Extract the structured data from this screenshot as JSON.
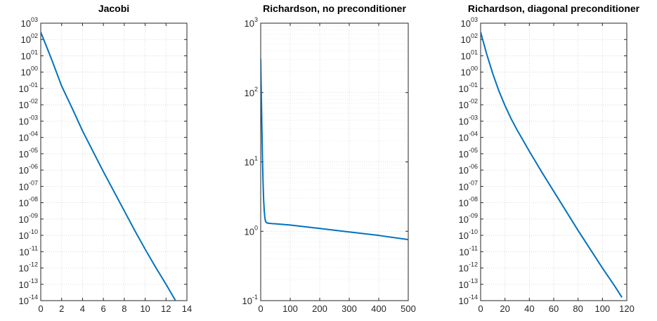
{
  "chart_data": [
    {
      "type": "line",
      "title": "Jacobi",
      "xlabel": "",
      "ylabel": "",
      "y_scale": "log",
      "xlim": [
        0,
        14
      ],
      "ylim_exp": [
        -14,
        3
      ],
      "x_ticks": [
        "0",
        "2",
        "4",
        "6",
        "8",
        "10",
        "12",
        "14"
      ],
      "x_tick_values": [
        0,
        2,
        4,
        6,
        8,
        10,
        12,
        14
      ],
      "y_tick_base": "10",
      "y_tick_exponents": [
        "-14",
        "-13",
        "-12",
        "-11",
        "-10",
        "-09",
        "-08",
        "-07",
        "-06",
        "-05",
        "-04",
        "-03",
        "-02",
        "-01",
        "00",
        "01",
        "02",
        "03"
      ],
      "grid": true,
      "minor_grid": true,
      "color": "#0072BD",
      "series": [
        {
          "x": [
            0,
            1,
            2,
            3,
            4,
            5,
            6,
            7,
            8,
            9,
            10,
            11,
            12,
            13,
            14
          ],
          "y_exp": [
            2.45,
            0.85,
            -0.85,
            -2.2,
            -3.6,
            -4.85,
            -6.1,
            -7.3,
            -8.5,
            -9.7,
            -10.85,
            -11.95,
            -13.0,
            -14.1,
            -15.2
          ]
        }
      ]
    },
    {
      "type": "line",
      "title": "Richardson, no preconditioner",
      "xlabel": "",
      "ylabel": "",
      "y_scale": "log",
      "xlim": [
        0,
        500
      ],
      "ylim_exp": [
        -1,
        3
      ],
      "x_ticks": [
        "0",
        "100",
        "200",
        "300",
        "400",
        "500"
      ],
      "x_tick_values": [
        0,
        100,
        200,
        300,
        400,
        500
      ],
      "y_tick_base": "10",
      "y_tick_exponents": [
        "-1",
        "0",
        "1",
        "2",
        "3"
      ],
      "grid": true,
      "minor_grid": true,
      "color": "#0072BD",
      "series": [
        {
          "x": [
            0,
            2,
            4,
            6,
            8,
            10,
            12,
            14,
            16,
            18,
            20,
            22,
            24,
            26,
            28,
            30,
            35,
            40,
            50,
            100,
            200,
            300,
            400,
            500
          ],
          "y_exp": [
            2.49,
            2.0,
            1.5,
            1.05,
            0.7,
            0.45,
            0.3,
            0.2,
            0.15,
            0.13,
            0.125,
            0.12,
            0.118,
            0.116,
            0.115,
            0.114,
            0.112,
            0.11,
            0.108,
            0.09,
            0.04,
            -0.01,
            -0.06,
            -0.12
          ]
        }
      ]
    },
    {
      "type": "line",
      "title": "Richardson, diagonal preconditioner",
      "xlabel": "",
      "ylabel": "",
      "y_scale": "log",
      "xlim": [
        0,
        120
      ],
      "ylim_exp": [
        -14,
        3
      ],
      "x_ticks": [
        "0",
        "20",
        "40",
        "60",
        "80",
        "100",
        "120"
      ],
      "x_tick_values": [
        0,
        20,
        40,
        60,
        80,
        100,
        120
      ],
      "y_tick_base": "10",
      "y_tick_exponents": [
        "-14",
        "-13",
        "-12",
        "-11",
        "-10",
        "-09",
        "-08",
        "-07",
        "-06",
        "-05",
        "-04",
        "-03",
        "-02",
        "-01",
        "00",
        "01",
        "02",
        "03"
      ],
      "grid": true,
      "minor_grid": true,
      "color": "#0072BD",
      "series": [
        {
          "x": [
            0,
            5,
            10,
            15,
            20,
            25,
            30,
            35,
            40,
            50,
            60,
            70,
            80,
            90,
            100,
            110,
            116
          ],
          "y_exp": [
            2.45,
            1.1,
            -0.1,
            -1.15,
            -2.05,
            -2.85,
            -3.55,
            -4.2,
            -4.85,
            -6.1,
            -7.3,
            -8.5,
            -9.7,
            -10.85,
            -12.0,
            -13.1,
            -13.8
          ]
        }
      ]
    }
  ]
}
